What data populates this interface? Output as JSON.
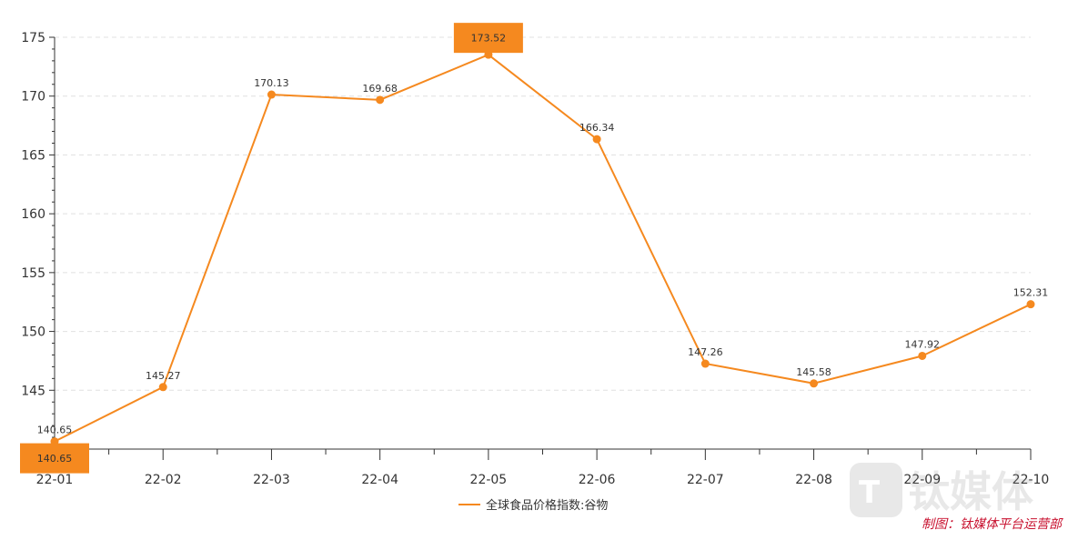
{
  "chart_data": {
    "type": "line",
    "categories": [
      "22-01",
      "22-02",
      "22-03",
      "22-04",
      "22-05",
      "22-06",
      "22-07",
      "22-08",
      "22-09",
      "22-10"
    ],
    "series": [
      {
        "name": "全球食品价格指数:谷物",
        "values": [
          140.65,
          145.27,
          170.13,
          169.68,
          173.52,
          166.34,
          147.26,
          145.58,
          147.92,
          152.31
        ]
      }
    ],
    "ylim": [
      140,
      175
    ],
    "yticks": [
      145,
      150,
      155,
      160,
      165,
      170,
      175
    ],
    "grid": true,
    "legend_position": "bottom-center",
    "highlights": [
      {
        "type": "max",
        "label": "173.52"
      },
      {
        "type": "min",
        "label": "140.65"
      }
    ],
    "colors": {
      "line": "#f5891f",
      "box": "#f5891f",
      "grid": "#e0e0e0",
      "axis": "#333333"
    }
  },
  "credit": "制图：钛媒体平台运营部",
  "credit_color": "#c8102e",
  "watermark_text": "钛媒体"
}
